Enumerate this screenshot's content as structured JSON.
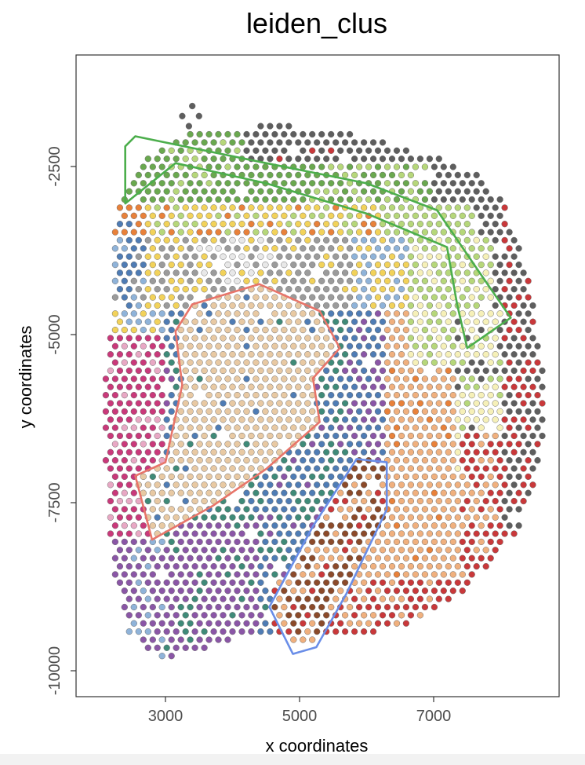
{
  "chart_data": {
    "type": "scatter",
    "title": "leiden_clus",
    "xlabel": "x coordinates",
    "ylabel": "y coordinates",
    "xlim": [
      1700,
      8950
    ],
    "ylim": [
      -10400,
      -4000
    ],
    "x_ticks": [
      3000,
      5000,
      7000
    ],
    "x_tick_labels": [
      "3000",
      "5000",
      "7000"
    ],
    "y_ticks": [
      -2500,
      -5000,
      -7500,
      -10000
    ],
    "y_tick_labels": [
      "-2500",
      "-5000",
      "-7500",
      "-10000"
    ],
    "grid": false,
    "legend": "none",
    "spot_spacing": 140,
    "background_color": "#ffffff",
    "panel_border_color": "#333333",
    "cluster_colors": {
      "gray_dark": "#5e5e5e",
      "green": "#6aa84f",
      "lightgreen": "#b6d77a",
      "yellow": "#f2d25a",
      "orange": "#e8813a",
      "gray_light": "#9b9b9b",
      "blue": "#4f7cb4",
      "lightblue": "#8fb3d9",
      "red": "#c9383a",
      "magenta": "#c9397a",
      "tan": "#e8c9a3",
      "teal": "#3f8a78",
      "purple": "#8a56a6",
      "peach": "#f0b07e",
      "brown": "#8b4a2a",
      "cream": "#f6f0b8",
      "pink": "#e8a8c4",
      "white": "#e8e8e8"
    },
    "regions": [
      {
        "color": "#4cae4c",
        "points": [
          [
            2550,
            -2050
          ],
          [
            4500,
            -2450
          ],
          [
            6000,
            -2750
          ],
          [
            7050,
            -3150
          ],
          [
            7700,
            -4100
          ],
          [
            8150,
            -4750
          ],
          [
            7500,
            -5200
          ],
          [
            7350,
            -4550
          ],
          [
            7200,
            -3700
          ],
          [
            6000,
            -3200
          ],
          [
            4500,
            -2750
          ],
          [
            3150,
            -2450
          ],
          [
            2400,
            -3050
          ],
          [
            2400,
            -2200
          ]
        ]
      },
      {
        "color": "#e8756a",
        "points": [
          [
            3400,
            -4550
          ],
          [
            4400,
            -4250
          ],
          [
            5300,
            -4650
          ],
          [
            5600,
            -5200
          ],
          [
            5200,
            -5650
          ],
          [
            5300,
            -6300
          ],
          [
            4500,
            -7000
          ],
          [
            3700,
            -7550
          ],
          [
            2800,
            -8050
          ],
          [
            2550,
            -7100
          ],
          [
            3000,
            -6900
          ],
          [
            3250,
            -5750
          ],
          [
            3150,
            -4950
          ]
        ]
      },
      {
        "color": "#6a8ee8",
        "points": [
          [
            5850,
            -6850
          ],
          [
            6300,
            -6900
          ],
          [
            6300,
            -7600
          ],
          [
            5700,
            -8850
          ],
          [
            5250,
            -9650
          ],
          [
            4900,
            -9750
          ],
          [
            4550,
            -9050
          ],
          [
            5200,
            -7850
          ]
        ]
      }
    ]
  }
}
